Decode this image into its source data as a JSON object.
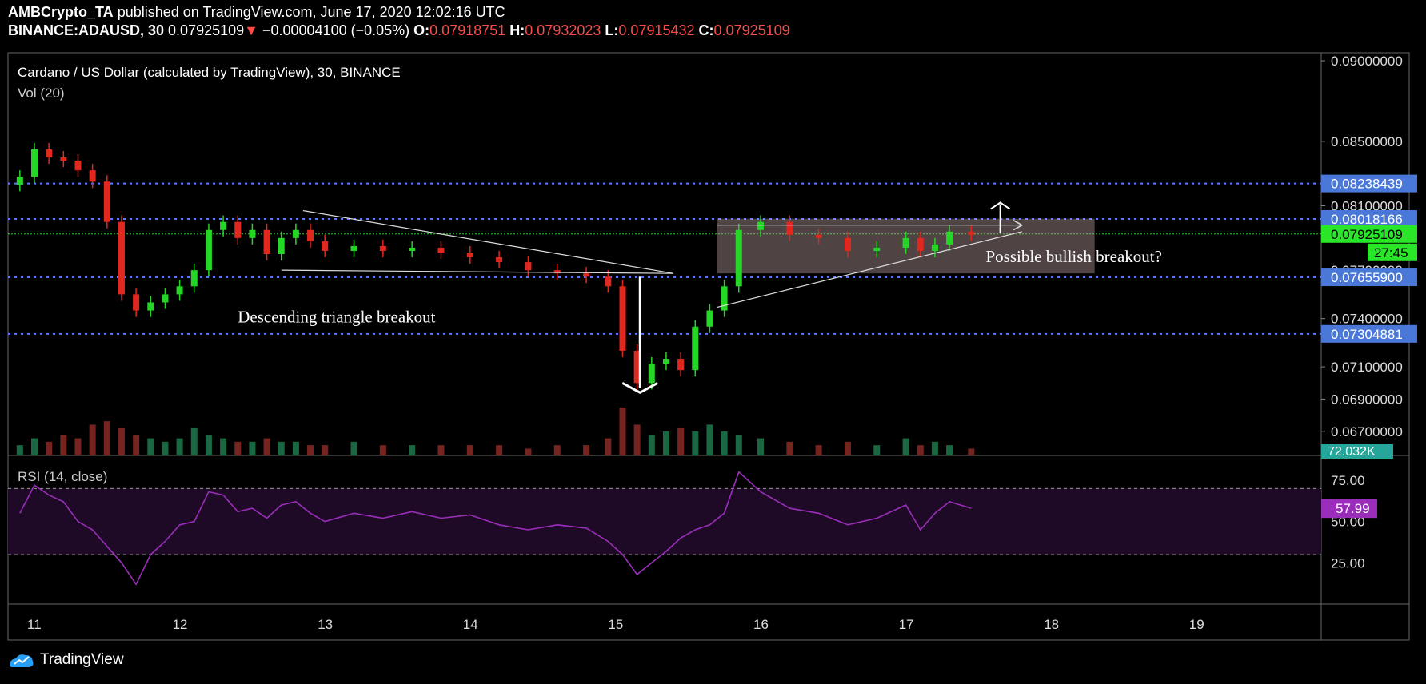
{
  "header": {
    "author": "AMBCrypto_TA",
    "published": "published on TradingView.com, June 17, 2020 12:02:16 UTC",
    "symbol": "BINANCE:ADAUSD, 30",
    "last": "0.07925109",
    "change": "−0.00004100 (−0.05%)",
    "o_label": "O:",
    "o_value": "0.07918751",
    "h_label": "H:",
    "h_value": "0.07932023",
    "l_label": "L:",
    "l_value": "0.07915432",
    "c_label": "C:",
    "c_value": "0.07925109"
  },
  "footer": {
    "brand": "TradingView"
  },
  "colors": {
    "up": "#26d626",
    "down": "#e0281e",
    "rsi": "#9b2dbb",
    "level": "#5b7cff",
    "badge": "#4a78d9",
    "price_badge": "#29e629"
  },
  "chart_data": [
    {
      "type": "candlestick",
      "title": "Cardano / US Dollar (calculated by TradingView), 30, BINANCE",
      "volume_label": "Vol (20)",
      "x_ticks": [
        "11",
        "12",
        "13",
        "14",
        "15",
        "16",
        "17",
        "18",
        "19"
      ],
      "y_ticks": [
        "0.09000000",
        "0.08500000",
        "0.08100000",
        "0.07700000",
        "0.07400000",
        "0.07100000",
        "0.06900000",
        "0.06700000"
      ],
      "ylim": [
        0.0655,
        0.0905
      ],
      "levels": [
        {
          "label": "0.08238439",
          "value": 0.08238439
        },
        {
          "label": "0.08018166",
          "value": 0.08018166
        },
        {
          "label": "0.07655900",
          "value": 0.076559
        },
        {
          "label": "0.07304881",
          "value": 0.07304881
        }
      ],
      "last_price": {
        "label": "0.07925109",
        "value": 0.07925109,
        "countdown": "27:45"
      },
      "volume_badge": "72.032K",
      "annotations": [
        "Descending triangle breakout",
        "Possible bullish breakout?"
      ],
      "series": [
        {
          "x": [
            10.9,
            11.0,
            11.1,
            11.2,
            11.3,
            11.4,
            11.5,
            11.6,
            11.7,
            11.8,
            11.9,
            12.0,
            12.1,
            12.2,
            12.3,
            12.4,
            12.5,
            12.6,
            12.7,
            12.8,
            12.9,
            13.0,
            13.2,
            13.4,
            13.6,
            13.8,
            14.0,
            14.2,
            14.4,
            14.6,
            14.8,
            14.95,
            15.05,
            15.15,
            15.25,
            15.35,
            15.45,
            15.55,
            15.65,
            15.75,
            15.85,
            16.0,
            16.2,
            16.4,
            16.6,
            16.8,
            17.0,
            17.1,
            17.2,
            17.3,
            17.45
          ],
          "close": [
            0.0828,
            0.0845,
            0.084,
            0.0838,
            0.0832,
            0.0825,
            0.08,
            0.0755,
            0.0745,
            0.075,
            0.0755,
            0.076,
            0.077,
            0.0795,
            0.08,
            0.079,
            0.0795,
            0.078,
            0.079,
            0.0795,
            0.0788,
            0.0782,
            0.0785,
            0.0782,
            0.0784,
            0.0781,
            0.0778,
            0.0775,
            0.077,
            0.0768,
            0.0766,
            0.076,
            0.072,
            0.07,
            0.0712,
            0.0715,
            0.0708,
            0.0735,
            0.0745,
            0.076,
            0.0795,
            0.08,
            0.0792,
            0.079,
            0.0782,
            0.0784,
            0.079,
            0.0782,
            0.0786,
            0.0794,
            0.0792
          ]
        }
      ],
      "volume": [
        3,
        5,
        4,
        6,
        5,
        9,
        10,
        8,
        6,
        5,
        4,
        5,
        8,
        6,
        5,
        4,
        4,
        5,
        4,
        4,
        3,
        3,
        4,
        3,
        3,
        3,
        3,
        3,
        2,
        3,
        3,
        5,
        14,
        9,
        6,
        7,
        8,
        7,
        9,
        7,
        6,
        5,
        4,
        3,
        4,
        3,
        5,
        3,
        4,
        3,
        2
      ]
    },
    {
      "type": "line",
      "title": "RSI (14, close)",
      "y_ticks": [
        "75.00",
        "50.00",
        "25.00"
      ],
      "ylim": [
        0,
        90
      ],
      "band": [
        30,
        70
      ],
      "last_value": {
        "label": "57.99",
        "value": 57.99
      },
      "series": [
        {
          "x": [
            10.9,
            11.0,
            11.1,
            11.2,
            11.3,
            11.4,
            11.5,
            11.6,
            11.7,
            11.8,
            11.9,
            12.0,
            12.1,
            12.2,
            12.3,
            12.4,
            12.5,
            12.6,
            12.7,
            12.8,
            12.9,
            13.0,
            13.2,
            13.4,
            13.6,
            13.8,
            14.0,
            14.2,
            14.4,
            14.6,
            14.8,
            14.95,
            15.05,
            15.15,
            15.25,
            15.35,
            15.45,
            15.55,
            15.65,
            15.75,
            15.85,
            16.0,
            16.2,
            16.4,
            16.6,
            16.8,
            17.0,
            17.1,
            17.2,
            17.3,
            17.45
          ],
          "values": [
            55,
            72,
            66,
            62,
            50,
            45,
            35,
            25,
            12,
            30,
            38,
            48,
            50,
            68,
            66,
            56,
            58,
            52,
            60,
            62,
            55,
            50,
            55,
            52,
            56,
            52,
            54,
            48,
            45,
            48,
            46,
            38,
            30,
            18,
            25,
            32,
            40,
            45,
            48,
            55,
            80,
            68,
            58,
            55,
            48,
            52,
            60,
            45,
            55,
            62,
            58
          ]
        }
      ]
    }
  ]
}
